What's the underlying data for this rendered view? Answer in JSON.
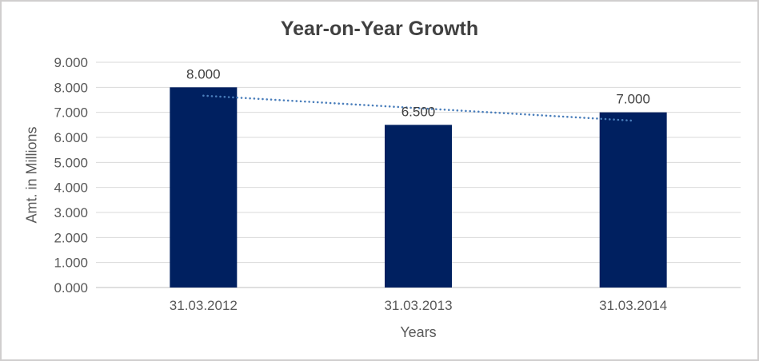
{
  "chart_data": {
    "type": "bar",
    "title": "Year-on-Year Growth",
    "xlabel": "Years",
    "ylabel": "Amt. in Millions",
    "categories": [
      "31.03.2012",
      "31.03.2013",
      "31.03.2014"
    ],
    "values": [
      8.0,
      6.5,
      7.0
    ],
    "bar_labels": [
      "8.000",
      "6.500",
      "7.000"
    ],
    "ylim": [
      0,
      9
    ],
    "ytick_step": 1,
    "ytick_labels": [
      "0.000",
      "1.000",
      "2.000",
      "3.000",
      "4.000",
      "5.000",
      "6.000",
      "7.000",
      "8.000",
      "9.000"
    ],
    "grid": true,
    "legend": false,
    "trendline": {
      "type": "linear",
      "style": "dotted",
      "values_at_categories": [
        7.667,
        7.167,
        6.667
      ]
    },
    "colors": {
      "bar": "#002060",
      "trendline": "#4a7ebb",
      "gridline": "#d9d9d9",
      "axis_line": "#bfbfbf",
      "tick_text": "#595959",
      "label_text": "#404040",
      "title_text": "#404040",
      "border": "#d0cece"
    }
  }
}
